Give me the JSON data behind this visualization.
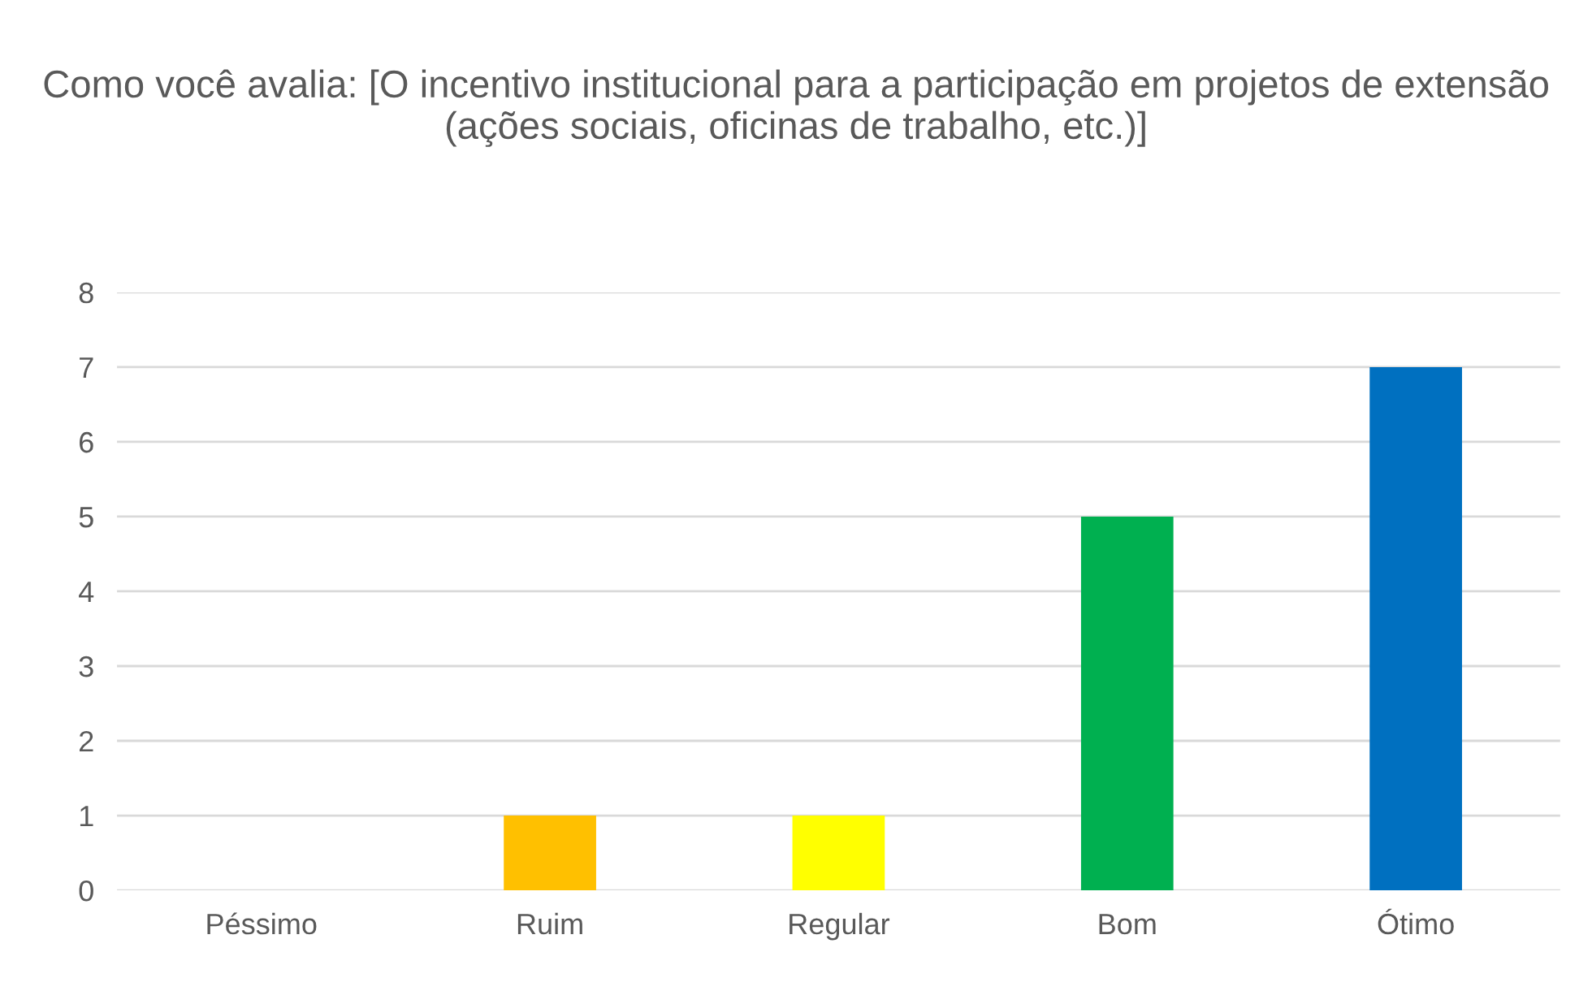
{
  "chart_data": {
    "type": "bar",
    "title": "Como você avalia: [O incentivo institucional para a participação em projetos de extensão (ações sociais, oficinas de trabalho, etc.)]",
    "categories": [
      "Péssimo",
      "Ruim",
      "Regular",
      "Bom",
      "Ótimo"
    ],
    "values": [
      0,
      1,
      1,
      5,
      7
    ],
    "colors": [
      "#c00000",
      "#ffc000",
      "#ffff00",
      "#00b050",
      "#0070c0"
    ],
    "ylim": [
      0,
      8
    ],
    "yticks": [
      0,
      1,
      2,
      3,
      4,
      5,
      6,
      7,
      8
    ],
    "grid": "y",
    "legend": false
  }
}
